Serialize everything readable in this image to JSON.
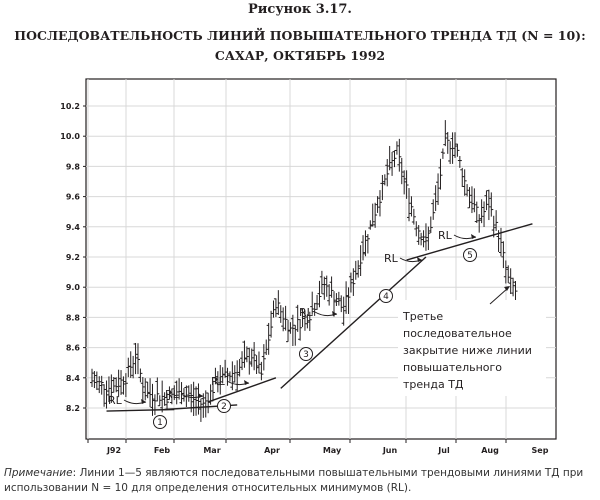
{
  "figure_label": "Рисунок 3.17.",
  "title_line1": "ПОСЛЕДОВАТЕЛЬНОСТЬ ЛИНИЙ ПОВЫШАТЕЛЬНОГО ТРЕНДА ТД (N = 10):",
  "title_line2": "САХАР, ОКТЯБРЬ 1992",
  "note_lead": "Примечание",
  "note_body": ": Линии 1—5 являются последовательными повышательными трендовыми линиями ТД при использовании N = 10 для определения относительных минимумов (RL).",
  "annotation": [
    "Третье",
    "последовательное",
    "закрытие ниже линии",
    "повышательного",
    "тренда ТД"
  ],
  "colors": {
    "ink": "#231f20",
    "grid": "#d8d8d8"
  },
  "chart_data": {
    "type": "bar",
    "subtype": "ohlc",
    "title": "",
    "xlabel": "",
    "ylabel": "",
    "ylim": [
      8.1,
      10.3
    ],
    "y_ticks": [
      8.2,
      8.4,
      8.6,
      8.8,
      9.0,
      9.2,
      9.4,
      9.6,
      9.8,
      10.0,
      10.2
    ],
    "y_tick_labels": [
      "8.2",
      "8.4",
      "8.6",
      "8.8",
      "9.0",
      "9.2",
      "9.4",
      "9.6",
      "9.8",
      "10.0",
      "10.2"
    ],
    "x_months": [
      "J92",
      "Feb",
      "Mar",
      "Apr",
      "May",
      "Jun",
      "Jul",
      "Aug",
      "Sep"
    ],
    "grid": true,
    "days": 175,
    "close_anchors": [
      [
        0,
        8.38
      ],
      [
        8,
        8.33
      ],
      [
        14,
        8.4
      ],
      [
        18,
        8.55
      ],
      [
        22,
        8.3
      ],
      [
        30,
        8.27
      ],
      [
        38,
        8.3
      ],
      [
        46,
        8.22
      ],
      [
        52,
        8.38
      ],
      [
        60,
        8.45
      ],
      [
        66,
        8.55
      ],
      [
        70,
        8.42
      ],
      [
        76,
        8.9
      ],
      [
        82,
        8.72
      ],
      [
        90,
        8.82
      ],
      [
        96,
        9.02
      ],
      [
        104,
        8.85
      ],
      [
        110,
        9.15
      ],
      [
        116,
        9.45
      ],
      [
        122,
        9.75
      ],
      [
        126,
        9.9
      ],
      [
        130,
        9.65
      ],
      [
        134,
        9.42
      ],
      [
        138,
        9.28
      ],
      [
        142,
        9.55
      ],
      [
        146,
        9.95
      ],
      [
        150,
        9.95
      ],
      [
        154,
        9.7
      ],
      [
        160,
        9.45
      ],
      [
        164,
        9.55
      ],
      [
        168,
        9.35
      ],
      [
        172,
        9.05
      ],
      [
        176,
        8.95
      ],
      [
        180,
        8.9
      ],
      [
        184,
        9.0
      ],
      [
        186,
        9.15
      ]
    ],
    "trendlines": [
      {
        "label": "1",
        "from": [
          6,
          8.18
        ],
        "to": [
          34,
          8.19
        ]
      },
      {
        "label": "2",
        "from": [
          30,
          8.19
        ],
        "to": [
          60,
          8.22
        ]
      },
      {
        "label": "3",
        "from": [
          48,
          8.24
        ],
        "to": [
          76,
          8.4
        ]
      },
      {
        "label": "4",
        "from": [
          78,
          8.33
        ],
        "to": [
          138,
          9.2
        ]
      },
      {
        "label": "5",
        "from": [
          130,
          9.18
        ],
        "to": [
          182,
          9.42
        ]
      }
    ],
    "rl_labels": [
      {
        "text": "RL",
        "at": [
          5,
          8.25
        ]
      },
      {
        "text": "RL",
        "at": [
          30,
          8.27
        ]
      },
      {
        "text": "RL",
        "at": [
          45,
          8.3
        ]
      },
      {
        "text": "RL",
        "at": [
          83,
          8.8
        ]
      },
      {
        "text": "RL",
        "at": [
          123,
          9.25
        ]
      },
      {
        "text": "RL",
        "at": [
          155,
          9.36
        ]
      }
    ]
  }
}
